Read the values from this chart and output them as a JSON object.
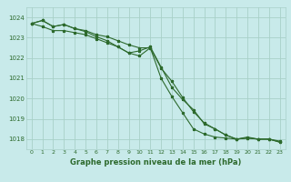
{
  "title": "Graphe pression niveau de la mer (hPa)",
  "bg_color": "#c8eaea",
  "grid_color": "#a8d0c8",
  "line_color": "#2d6a2d",
  "marker": "*",
  "xlim": [
    -0.5,
    23.5
  ],
  "ylim": [
    1017.5,
    1024.5
  ],
  "yticks": [
    1018,
    1019,
    1020,
    1021,
    1022,
    1023,
    1024
  ],
  "xticks": [
    0,
    1,
    2,
    3,
    4,
    5,
    6,
    7,
    8,
    9,
    10,
    11,
    12,
    13,
    14,
    15,
    16,
    17,
    18,
    19,
    20,
    21,
    22,
    23
  ],
  "series": [
    [
      1023.7,
      1023.85,
      1023.55,
      1023.65,
      1023.45,
      1023.35,
      1023.15,
      1023.05,
      1022.85,
      1022.65,
      1022.5,
      1022.5,
      1021.0,
      1020.1,
      1019.3,
      1018.5,
      1018.25,
      1018.1,
      1018.05,
      1018.0,
      1018.1,
      1018.0,
      1018.0,
      1017.9
    ],
    [
      1023.7,
      1023.85,
      1023.55,
      1023.65,
      1023.45,
      1023.3,
      1023.05,
      1022.85,
      1022.55,
      1022.25,
      1022.1,
      1022.5,
      1021.5,
      1020.85,
      1020.05,
      1019.35,
      1018.8,
      1018.5,
      1018.2,
      1018.0,
      1018.05,
      1018.0,
      1018.0,
      1017.85
    ],
    [
      1023.7,
      1023.55,
      1023.35,
      1023.35,
      1023.25,
      1023.15,
      1022.95,
      1022.75,
      1022.55,
      1022.25,
      1022.35,
      1022.55,
      1021.55,
      1020.55,
      1019.95,
      1019.45,
      1018.75,
      1018.5,
      1018.2,
      1018.0,
      1018.05,
      1018.0,
      1018.0,
      1017.85
    ]
  ]
}
